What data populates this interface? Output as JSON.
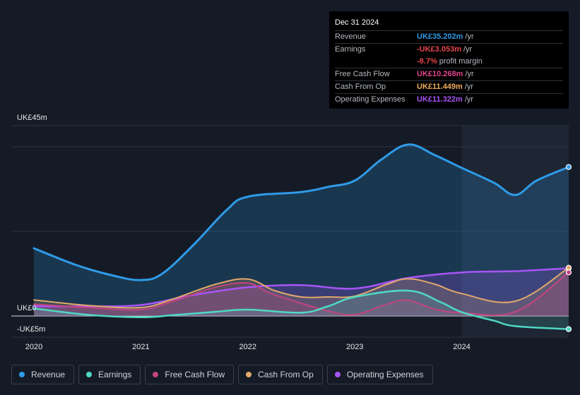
{
  "tooltip": {
    "date": "Dec 31 2024",
    "rows": [
      {
        "label": "Revenue",
        "value": "UK£35.202m",
        "unit": "/yr",
        "color": "#2f9be8"
      },
      {
        "label": "Earnings",
        "value": "-UK£3.053m",
        "unit": "/yr",
        "color": "#e8454b"
      },
      {
        "label": "",
        "value": "-8.7%",
        "unit": "profit margin",
        "color": "#e8454b"
      },
      {
        "label": "Free Cash Flow",
        "value": "UK£10.268m",
        "unit": "/yr",
        "color": "#e0448c"
      },
      {
        "label": "Cash From Op",
        "value": "UK£11.449m",
        "unit": "/yr",
        "color": "#f0ae5c"
      },
      {
        "label": "Operating Expenses",
        "value": "UK£11.322m",
        "unit": "/yr",
        "color": "#a855f7"
      }
    ]
  },
  "chart_data": {
    "type": "area",
    "title": "",
    "ylabel_top": "UK£45m",
    "ylabel_zero": "UK£0",
    "ylabel_bottom": "-UK£5m",
    "ylim": [
      -5,
      45
    ],
    "xlim": [
      2020.0,
      2025.0
    ],
    "x_ticks": [
      {
        "label": "2020",
        "value": 2020.0
      },
      {
        "label": "2021",
        "value": 2021.0
      },
      {
        "label": "2022",
        "value": 2022.0
      },
      {
        "label": "2023",
        "value": 2023.0
      },
      {
        "label": "2024",
        "value": 2024.0
      }
    ],
    "highlight_start": 2024.0,
    "series": [
      {
        "name": "Revenue",
        "color": "#2f9be8",
        "points": [
          [
            2020.0,
            16
          ],
          [
            2020.4,
            12
          ],
          [
            2020.75,
            9.5
          ],
          [
            2021.0,
            8.5
          ],
          [
            2021.2,
            10
          ],
          [
            2021.5,
            17
          ],
          [
            2021.8,
            25
          ],
          [
            2022.0,
            28.2
          ],
          [
            2022.5,
            29.3
          ],
          [
            2022.75,
            30.5
          ],
          [
            2023.0,
            32
          ],
          [
            2023.25,
            37
          ],
          [
            2023.5,
            40.5
          ],
          [
            2023.75,
            38
          ],
          [
            2024.0,
            35
          ],
          [
            2024.3,
            31.5
          ],
          [
            2024.5,
            28.6
          ],
          [
            2024.7,
            32
          ],
          [
            2025.0,
            35.2
          ]
        ]
      },
      {
        "name": "Earnings",
        "color": "#4fd8c4",
        "points": [
          [
            2020.0,
            1.8
          ],
          [
            2020.5,
            0.3
          ],
          [
            2021.0,
            -0.3
          ],
          [
            2021.3,
            0.2
          ],
          [
            2021.7,
            1.0
          ],
          [
            2022.0,
            1.5
          ],
          [
            2022.5,
            0.8
          ],
          [
            2022.75,
            2.3
          ],
          [
            2023.0,
            4.5
          ],
          [
            2023.5,
            6.0
          ],
          [
            2023.8,
            3.3
          ],
          [
            2024.0,
            0.9
          ],
          [
            2024.3,
            -1.1
          ],
          [
            2024.5,
            -2.4
          ],
          [
            2025.0,
            -3.1
          ]
        ]
      },
      {
        "name": "Free Cash Flow",
        "color": "#c44480",
        "points": [
          [
            2020.0,
            2.8
          ],
          [
            2020.5,
            2.0
          ],
          [
            2021.0,
            1.5
          ],
          [
            2021.3,
            3.5
          ],
          [
            2021.7,
            6.8
          ],
          [
            2022.0,
            7.8
          ],
          [
            2022.2,
            5.5
          ],
          [
            2022.5,
            3.0
          ],
          [
            2022.75,
            1.2
          ],
          [
            2023.0,
            0.3
          ],
          [
            2023.3,
            2.8
          ],
          [
            2023.5,
            3.7
          ],
          [
            2023.75,
            1.6
          ],
          [
            2024.0,
            0.8
          ],
          [
            2024.5,
            1.0
          ],
          [
            2025.0,
            10.3
          ]
        ]
      },
      {
        "name": "Cash From Op",
        "color": "#e3a86a",
        "points": [
          [
            2020.0,
            3.8
          ],
          [
            2020.5,
            2.5
          ],
          [
            2021.0,
            2.0
          ],
          [
            2021.3,
            4.0
          ],
          [
            2021.7,
            7.5
          ],
          [
            2022.0,
            8.7
          ],
          [
            2022.25,
            6.0
          ],
          [
            2022.5,
            4.5
          ],
          [
            2022.75,
            4.5
          ],
          [
            2023.0,
            4.7
          ],
          [
            2023.3,
            7.5
          ],
          [
            2023.5,
            8.8
          ],
          [
            2023.75,
            7.5
          ],
          [
            2024.0,
            5.3
          ],
          [
            2024.5,
            3.5
          ],
          [
            2025.0,
            11.4
          ]
        ]
      },
      {
        "name": "Operating Expenses",
        "color": "#a855f7",
        "points": [
          [
            2020.0,
            2.3
          ],
          [
            2020.5,
            2.3
          ],
          [
            2021.0,
            2.6
          ],
          [
            2021.5,
            5.0
          ],
          [
            2022.0,
            6.8
          ],
          [
            2022.5,
            7.3
          ],
          [
            2023.0,
            6.5
          ],
          [
            2023.5,
            9.0
          ],
          [
            2024.0,
            10.3
          ],
          [
            2024.5,
            10.6
          ],
          [
            2025.0,
            11.3
          ]
        ]
      }
    ]
  },
  "legend": [
    {
      "label": "Revenue",
      "color": "#2f9be8"
    },
    {
      "label": "Earnings",
      "color": "#4fd8c4"
    },
    {
      "label": "Free Cash Flow",
      "color": "#c44480"
    },
    {
      "label": "Cash From Op",
      "color": "#e3a86a"
    },
    {
      "label": "Operating Expenses",
      "color": "#a855f7"
    }
  ]
}
